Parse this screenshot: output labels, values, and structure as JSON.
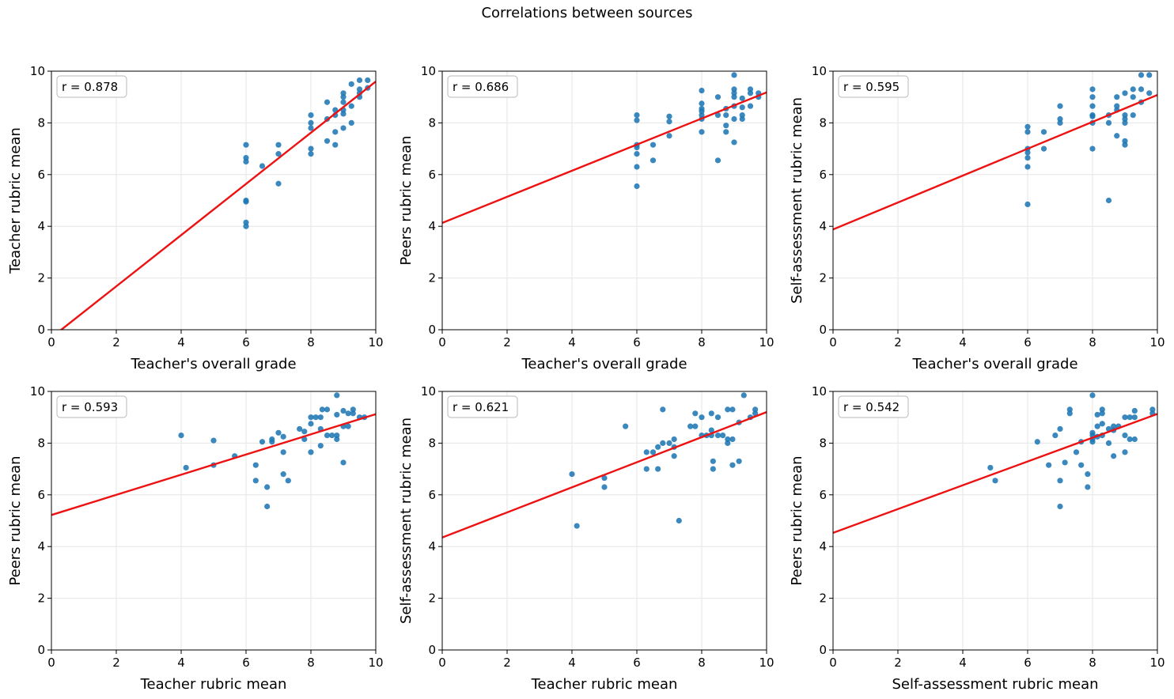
{
  "figure": {
    "title": "Correlations between sources"
  },
  "colors": {
    "points": "#1f77b4",
    "fit_line": "#ee1111",
    "grid": "#e6e6e6"
  },
  "chart_data": [
    {
      "type": "scatter",
      "title": "",
      "xlabel": "Teacher's overall grade",
      "ylabel": "Teacher rubric mean",
      "annotation": "r = 0.878",
      "xlim": [
        0,
        10
      ],
      "ylim": [
        0,
        10
      ],
      "xticks": [
        "0",
        "2",
        "4",
        "6",
        "8",
        "10"
      ],
      "yticks": [
        "0",
        "2",
        "4",
        "6",
        "8",
        "10"
      ],
      "grid": true,
      "fit": {
        "slope": 0.99,
        "intercept": -0.3
      },
      "points": [
        [
          6,
          7.15
        ],
        [
          6,
          6.65
        ],
        [
          6,
          6.5
        ],
        [
          6,
          5.0
        ],
        [
          6,
          4.95
        ],
        [
          6,
          4.15
        ],
        [
          6,
          4.0
        ],
        [
          6.5,
          6.33
        ],
        [
          7,
          7.15
        ],
        [
          7,
          6.8
        ],
        [
          7,
          5.65
        ],
        [
          8,
          8.3
        ],
        [
          8,
          8.0
        ],
        [
          8,
          7.8
        ],
        [
          8,
          7.0
        ],
        [
          8,
          6.8
        ],
        [
          8.5,
          8.8
        ],
        [
          8.5,
          8.15
        ],
        [
          8.5,
          7.3
        ],
        [
          8.75,
          8.5
        ],
        [
          8.75,
          8.3
        ],
        [
          8.75,
          7.65
        ],
        [
          8.75,
          7.15
        ],
        [
          9,
          9.15
        ],
        [
          9,
          9.0
        ],
        [
          9,
          8.8
        ],
        [
          9,
          8.5
        ],
        [
          9,
          8.35
        ],
        [
          9,
          7.8
        ],
        [
          9.25,
          9.5
        ],
        [
          9.25,
          8.65
        ],
        [
          9.25,
          8.0
        ],
        [
          9.5,
          9.65
        ],
        [
          9.5,
          9.3
        ],
        [
          9.5,
          9.15
        ],
        [
          9.5,
          9.0
        ],
        [
          9.75,
          9.65
        ],
        [
          9.75,
          9.35
        ]
      ]
    },
    {
      "type": "scatter",
      "title": "",
      "xlabel": "Teacher's overall grade",
      "ylabel": "Peers rubric mean",
      "annotation": "r = 0.686",
      "xlim": [
        0,
        10
      ],
      "ylim": [
        0,
        10
      ],
      "xticks": [
        "0",
        "2",
        "4",
        "6",
        "8",
        "10"
      ],
      "yticks": [
        "0",
        "2",
        "4",
        "6",
        "8",
        "10"
      ],
      "grid": true,
      "fit": {
        "slope": 0.505,
        "intercept": 4.13
      },
      "points": [
        [
          6,
          8.3
        ],
        [
          6,
          8.1
        ],
        [
          6,
          7.15
        ],
        [
          6,
          7.05
        ],
        [
          6,
          6.8
        ],
        [
          6,
          6.3
        ],
        [
          6,
          5.55
        ],
        [
          6.5,
          7.15
        ],
        [
          6.5,
          6.55
        ],
        [
          7,
          8.25
        ],
        [
          7,
          8.05
        ],
        [
          7,
          7.5
        ],
        [
          8,
          9.25
        ],
        [
          8,
          8.75
        ],
        [
          8,
          8.55
        ],
        [
          8,
          8.45
        ],
        [
          8,
          8.3
        ],
        [
          8,
          8.15
        ],
        [
          8,
          7.65
        ],
        [
          8.5,
          9.0
        ],
        [
          8.5,
          8.3
        ],
        [
          8.5,
          6.55
        ],
        [
          8.75,
          8.55
        ],
        [
          8.75,
          8.3
        ],
        [
          8.75,
          7.9
        ],
        [
          8.75,
          7.65
        ],
        [
          9,
          9.85
        ],
        [
          9,
          9.3
        ],
        [
          9,
          9.15
        ],
        [
          9,
          9.0
        ],
        [
          9,
          8.65
        ],
        [
          9,
          8.15
        ],
        [
          9,
          7.25
        ],
        [
          9.25,
          8.95
        ],
        [
          9.25,
          8.6
        ],
        [
          9.25,
          8.3
        ],
        [
          9.25,
          8.15
        ],
        [
          9.5,
          9.3
        ],
        [
          9.5,
          9.15
        ],
        [
          9.5,
          8.65
        ],
        [
          9.75,
          9.15
        ],
        [
          9.75,
          9.0
        ]
      ]
    },
    {
      "type": "scatter",
      "title": "",
      "xlabel": "Teacher's overall grade",
      "ylabel": "Self-assessment rubric mean",
      "annotation": "r = 0.595",
      "xlim": [
        0,
        10
      ],
      "ylim": [
        0,
        10
      ],
      "xticks": [
        "0",
        "2",
        "4",
        "6",
        "8",
        "10"
      ],
      "yticks": [
        "0",
        "2",
        "4",
        "6",
        "8",
        "10"
      ],
      "grid": true,
      "fit": {
        "slope": 0.52,
        "intercept": 3.88
      },
      "points": [
        [
          6,
          7.85
        ],
        [
          6,
          7.65
        ],
        [
          6,
          7.0
        ],
        [
          6,
          6.85
        ],
        [
          6,
          6.65
        ],
        [
          6,
          6.3
        ],
        [
          6,
          4.85
        ],
        [
          6.5,
          7.65
        ],
        [
          6.5,
          7.0
        ],
        [
          7,
          8.65
        ],
        [
          7,
          8.15
        ],
        [
          7,
          8.0
        ],
        [
          8,
          9.3
        ],
        [
          8,
          9.0
        ],
        [
          8,
          8.65
        ],
        [
          8,
          8.3
        ],
        [
          8,
          8.25
        ],
        [
          8,
          8.0
        ],
        [
          8,
          7.0
        ],
        [
          8.5,
          8.3
        ],
        [
          8.5,
          8.0
        ],
        [
          8.5,
          5.0
        ],
        [
          8.75,
          9.0
        ],
        [
          8.75,
          8.65
        ],
        [
          8.75,
          8.5
        ],
        [
          8.75,
          7.5
        ],
        [
          9,
          9.15
        ],
        [
          9,
          8.3
        ],
        [
          9,
          8.15
        ],
        [
          9,
          8.0
        ],
        [
          9,
          7.3
        ],
        [
          9,
          7.15
        ],
        [
          9.25,
          9.3
        ],
        [
          9.25,
          9.0
        ],
        [
          9.25,
          8.3
        ],
        [
          9.5,
          9.85
        ],
        [
          9.5,
          9.3
        ],
        [
          9.5,
          8.8
        ],
        [
          9.75,
          9.85
        ],
        [
          9.75,
          9.15
        ]
      ]
    },
    {
      "type": "scatter",
      "title": "",
      "xlabel": "Teacher rubric mean",
      "ylabel": "Peers rubric mean",
      "annotation": "r = 0.593",
      "xlim": [
        0,
        10
      ],
      "ylim": [
        0,
        10
      ],
      "xticks": [
        "0",
        "2",
        "4",
        "6",
        "8",
        "10"
      ],
      "yticks": [
        "0",
        "2",
        "4",
        "6",
        "8",
        "10"
      ],
      "grid": true,
      "fit": {
        "slope": 0.39,
        "intercept": 5.22
      },
      "points": [
        [
          4.0,
          8.3
        ],
        [
          4.15,
          7.05
        ],
        [
          5.0,
          8.1
        ],
        [
          5.0,
          7.15
        ],
        [
          5.65,
          7.5
        ],
        [
          6.3,
          7.15
        ],
        [
          6.3,
          6.55
        ],
        [
          6.5,
          8.05
        ],
        [
          6.65,
          6.3
        ],
        [
          6.65,
          5.55
        ],
        [
          6.8,
          8.15
        ],
        [
          6.8,
          8.05
        ],
        [
          7.0,
          8.4
        ],
        [
          7.15,
          8.25
        ],
        [
          7.15,
          7.65
        ],
        [
          7.15,
          6.8
        ],
        [
          7.3,
          6.55
        ],
        [
          7.65,
          8.55
        ],
        [
          7.8,
          8.45
        ],
        [
          7.8,
          8.15
        ],
        [
          8.0,
          9.0
        ],
        [
          8.0,
          8.75
        ],
        [
          8.0,
          7.65
        ],
        [
          8.15,
          9.0
        ],
        [
          8.3,
          9.0
        ],
        [
          8.3,
          8.55
        ],
        [
          8.3,
          7.9
        ],
        [
          8.35,
          9.3
        ],
        [
          8.5,
          9.3
        ],
        [
          8.5,
          8.3
        ],
        [
          8.65,
          8.3
        ],
        [
          8.8,
          9.85
        ],
        [
          8.8,
          9.1
        ],
        [
          8.8,
          8.3
        ],
        [
          8.8,
          8.15
        ],
        [
          9.0,
          9.25
        ],
        [
          9.0,
          8.65
        ],
        [
          9.0,
          7.25
        ],
        [
          9.15,
          9.15
        ],
        [
          9.15,
          8.65
        ],
        [
          9.3,
          9.3
        ],
        [
          9.3,
          9.15
        ],
        [
          9.5,
          9.0
        ],
        [
          9.65,
          9.0
        ]
      ]
    },
    {
      "type": "scatter",
      "title": "",
      "xlabel": "Teacher rubric mean",
      "ylabel": "Self-assessment rubric mean",
      "annotation": "r = 0.621",
      "xlim": [
        0,
        10
      ],
      "ylim": [
        0,
        10
      ],
      "xticks": [
        "0",
        "2",
        "4",
        "6",
        "8",
        "10"
      ],
      "yticks": [
        "0",
        "2",
        "4",
        "6",
        "8",
        "10"
      ],
      "grid": true,
      "fit": {
        "slope": 0.485,
        "intercept": 4.35
      },
      "points": [
        [
          4.0,
          6.8
        ],
        [
          4.15,
          4.8
        ],
        [
          5.0,
          6.65
        ],
        [
          5.0,
          6.3
        ],
        [
          5.65,
          8.65
        ],
        [
          6.3,
          7.65
        ],
        [
          6.3,
          7.0
        ],
        [
          6.5,
          7.65
        ],
        [
          6.65,
          7.85
        ],
        [
          6.65,
          7.0
        ],
        [
          6.8,
          9.3
        ],
        [
          6.8,
          8.0
        ],
        [
          7.0,
          8.0
        ],
        [
          7.15,
          8.15
        ],
        [
          7.15,
          7.85
        ],
        [
          7.15,
          7.5
        ],
        [
          7.3,
          5.0
        ],
        [
          7.65,
          8.65
        ],
        [
          7.8,
          9.15
        ],
        [
          7.8,
          8.65
        ],
        [
          8.0,
          9.0
        ],
        [
          8.0,
          8.3
        ],
        [
          8.15,
          8.3
        ],
        [
          8.3,
          9.15
        ],
        [
          8.3,
          8.5
        ],
        [
          8.3,
          8.3
        ],
        [
          8.35,
          7.3
        ],
        [
          8.35,
          7.0
        ],
        [
          8.5,
          9.0
        ],
        [
          8.5,
          8.3
        ],
        [
          8.65,
          8.3
        ],
        [
          8.8,
          9.3
        ],
        [
          8.8,
          8.15
        ],
        [
          8.8,
          8.0
        ],
        [
          8.95,
          9.3
        ],
        [
          8.95,
          8.15
        ],
        [
          8.95,
          7.15
        ],
        [
          9.15,
          8.8
        ],
        [
          9.15,
          7.3
        ],
        [
          9.3,
          9.85
        ],
        [
          9.5,
          9.0
        ],
        [
          9.65,
          9.3
        ],
        [
          9.65,
          9.15
        ]
      ]
    },
    {
      "type": "scatter",
      "title": "",
      "xlabel": "Self-assessment rubric mean",
      "ylabel": "Peers rubric mean",
      "annotation": "r = 0.542",
      "xlim": [
        0,
        10
      ],
      "ylim": [
        0,
        10
      ],
      "xticks": [
        "0",
        "2",
        "4",
        "6",
        "8",
        "10"
      ],
      "yticks": [
        "0",
        "2",
        "4",
        "6",
        "8",
        "10"
      ],
      "grid": true,
      "fit": {
        "slope": 0.46,
        "intercept": 4.53
      },
      "points": [
        [
          4.85,
          7.05
        ],
        [
          5.0,
          6.55
        ],
        [
          6.3,
          8.05
        ],
        [
          6.65,
          7.15
        ],
        [
          6.85,
          8.3
        ],
        [
          7.0,
          8.55
        ],
        [
          7.0,
          6.55
        ],
        [
          7.0,
          5.55
        ],
        [
          7.15,
          7.25
        ],
        [
          7.3,
          9.3
        ],
        [
          7.3,
          9.15
        ],
        [
          7.5,
          7.65
        ],
        [
          7.65,
          8.05
        ],
        [
          7.65,
          7.15
        ],
        [
          7.85,
          6.8
        ],
        [
          7.85,
          6.3
        ],
        [
          8.0,
          9.85
        ],
        [
          8.0,
          8.3
        ],
        [
          8.0,
          8.15
        ],
        [
          8.0,
          8.05
        ],
        [
          8.0,
          8.4
        ],
        [
          8.15,
          9.1
        ],
        [
          8.15,
          8.65
        ],
        [
          8.15,
          8.25
        ],
        [
          8.3,
          9.3
        ],
        [
          8.3,
          9.15
        ],
        [
          8.3,
          8.75
        ],
        [
          8.3,
          8.3
        ],
        [
          8.5,
          8.55
        ],
        [
          8.5,
          8.0
        ],
        [
          8.65,
          8.65
        ],
        [
          8.65,
          8.5
        ],
        [
          8.65,
          7.5
        ],
        [
          8.8,
          8.65
        ],
        [
          9.0,
          9.0
        ],
        [
          9.0,
          8.3
        ],
        [
          9.0,
          7.65
        ],
        [
          9.15,
          9.0
        ],
        [
          9.15,
          8.15
        ],
        [
          9.3,
          9.25
        ],
        [
          9.3,
          9.0
        ],
        [
          9.3,
          8.15
        ],
        [
          9.85,
          9.3
        ],
        [
          9.85,
          9.15
        ]
      ]
    }
  ]
}
